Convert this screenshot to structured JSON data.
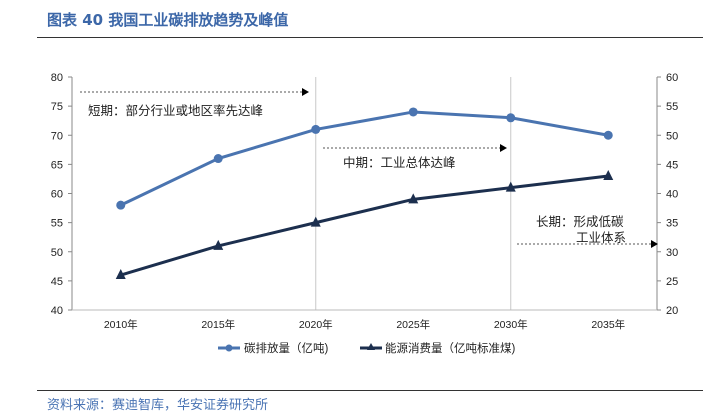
{
  "header": {
    "title": "图表 40 我国工业碳排放趋势及峰值"
  },
  "footer": {
    "source": "资料来源：赛迪智库，华安证券研究所"
  },
  "chart_data": {
    "type": "line",
    "title": "我国工业碳排放趋势及峰值",
    "categories": [
      "2010年",
      "2015年",
      "2020年",
      "2025年",
      "2030年",
      "2035年"
    ],
    "y_left": {
      "range": [
        40,
        80
      ],
      "ticks": [
        40,
        45,
        50,
        55,
        60,
        65,
        70,
        75,
        80
      ]
    },
    "y_right": {
      "range": [
        20,
        60
      ],
      "ticks": [
        20,
        25,
        30,
        35,
        40,
        45,
        50,
        55,
        60
      ]
    },
    "series": [
      {
        "name": "碳排放量（亿吨)",
        "axis": "left",
        "marker": "circle",
        "color": "#4a74b0",
        "values": [
          58,
          66,
          71,
          74,
          73,
          70
        ]
      },
      {
        "name": "能源消费量（亿吨标准煤)",
        "axis": "right",
        "marker": "triangle",
        "color": "#1c2f4e",
        "values": [
          26,
          31,
          35,
          39,
          41,
          43
        ]
      }
    ],
    "legend": "bottom",
    "annotations": [
      {
        "text": "短期：部分行业或地区率先达峰"
      },
      {
        "text": "中期：工业总体达峰"
      },
      {
        "text": "长期：形成低碳",
        "text2": "工业体系"
      }
    ]
  }
}
